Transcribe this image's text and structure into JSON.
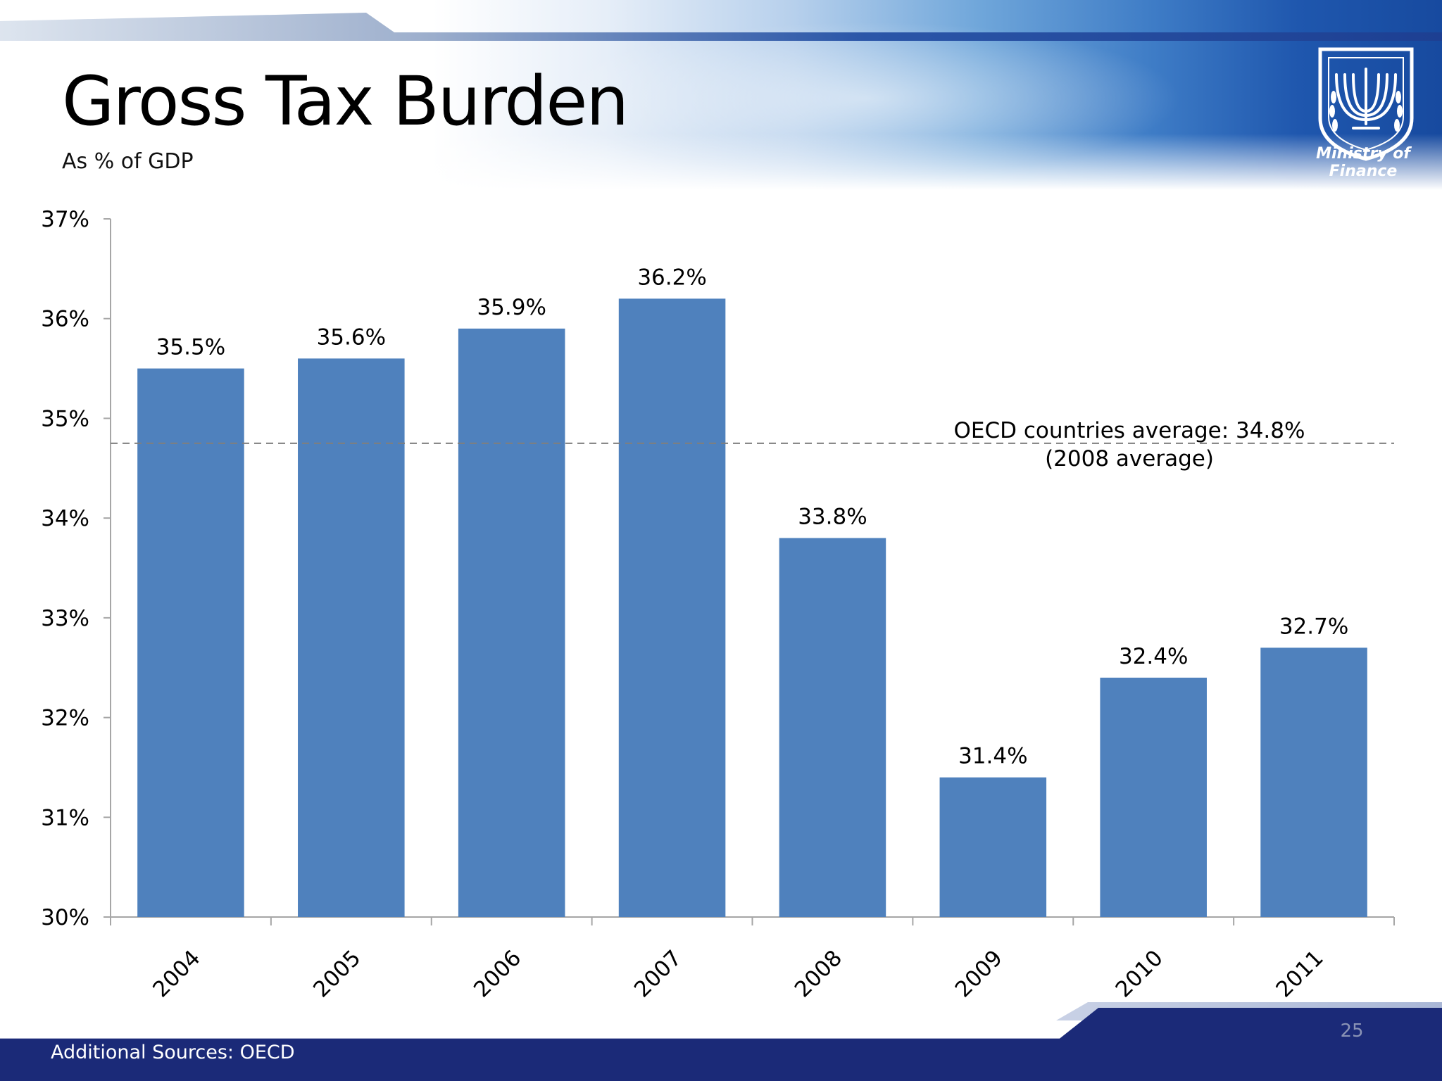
{
  "slide": {
    "title": "Gross Tax Burden",
    "subtitle": "As % of GDP",
    "logo_caption": "Ministry of Finance",
    "footer_source": "Additional Sources: OECD",
    "page_number": "25",
    "colors": {
      "bar": "#4f81bd",
      "footer": "#1b2a78",
      "reference_line": "#7f7f7f",
      "axis": "#a6a6a6"
    },
    "icons": {
      "logo": "menorah-emblem-icon"
    }
  },
  "chart_data": {
    "type": "bar",
    "categories": [
      "2004",
      "2005",
      "2006",
      "2007",
      "2008",
      "2009",
      "2010",
      "2011"
    ],
    "values": [
      35.5,
      35.6,
      35.9,
      36.2,
      33.8,
      31.4,
      32.4,
      32.7
    ],
    "value_labels": [
      "35.5%",
      "35.6%",
      "35.9%",
      "36.2%",
      "33.8%",
      "31.4%",
      "32.4%",
      "32.7%"
    ],
    "ylim": [
      30,
      37
    ],
    "yticks": [
      30,
      31,
      32,
      33,
      34,
      35,
      36,
      37
    ],
    "ytick_labels": [
      "30%",
      "31%",
      "32%",
      "33%",
      "34%",
      "35%",
      "36%",
      "37%"
    ],
    "xtick_rotation_deg": -45,
    "grid": false,
    "legend": "none",
    "reference_line": {
      "value": 34.75,
      "style": "dashed",
      "label_line1": "OECD countries average: 34.8%",
      "label_line2": "(2008 average)"
    }
  }
}
